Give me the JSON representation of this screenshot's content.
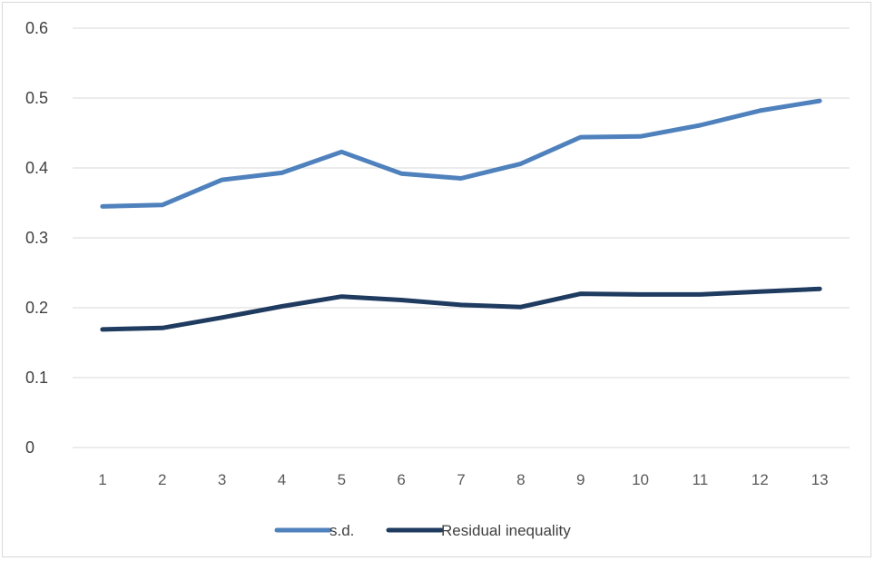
{
  "chart_data": {
    "type": "line",
    "title": "",
    "xlabel": "",
    "ylabel": "",
    "categories": [
      "1",
      "2",
      "3",
      "4",
      "5",
      "6",
      "7",
      "8",
      "9",
      "10",
      "11",
      "12",
      "13"
    ],
    "ylim": [
      0,
      0.6
    ],
    "yticks": [
      "0",
      "0.1",
      "0.2",
      "0.3",
      "0.4",
      "0.5",
      "0.6"
    ],
    "grid": true,
    "legend_position": "bottom",
    "series": [
      {
        "name": "s.d.",
        "color": "#4f81bd",
        "values": [
          0.345,
          0.347,
          0.383,
          0.393,
          0.423,
          0.392,
          0.385,
          0.406,
          0.444,
          0.445,
          0.461,
          0.482,
          0.496
        ]
      },
      {
        "name": "Residual inequality",
        "color": "#1f3b60",
        "values": [
          0.169,
          0.171,
          0.186,
          0.202,
          0.216,
          0.211,
          0.204,
          0.201,
          0.22,
          0.219,
          0.219,
          0.223,
          0.227
        ]
      }
    ]
  }
}
